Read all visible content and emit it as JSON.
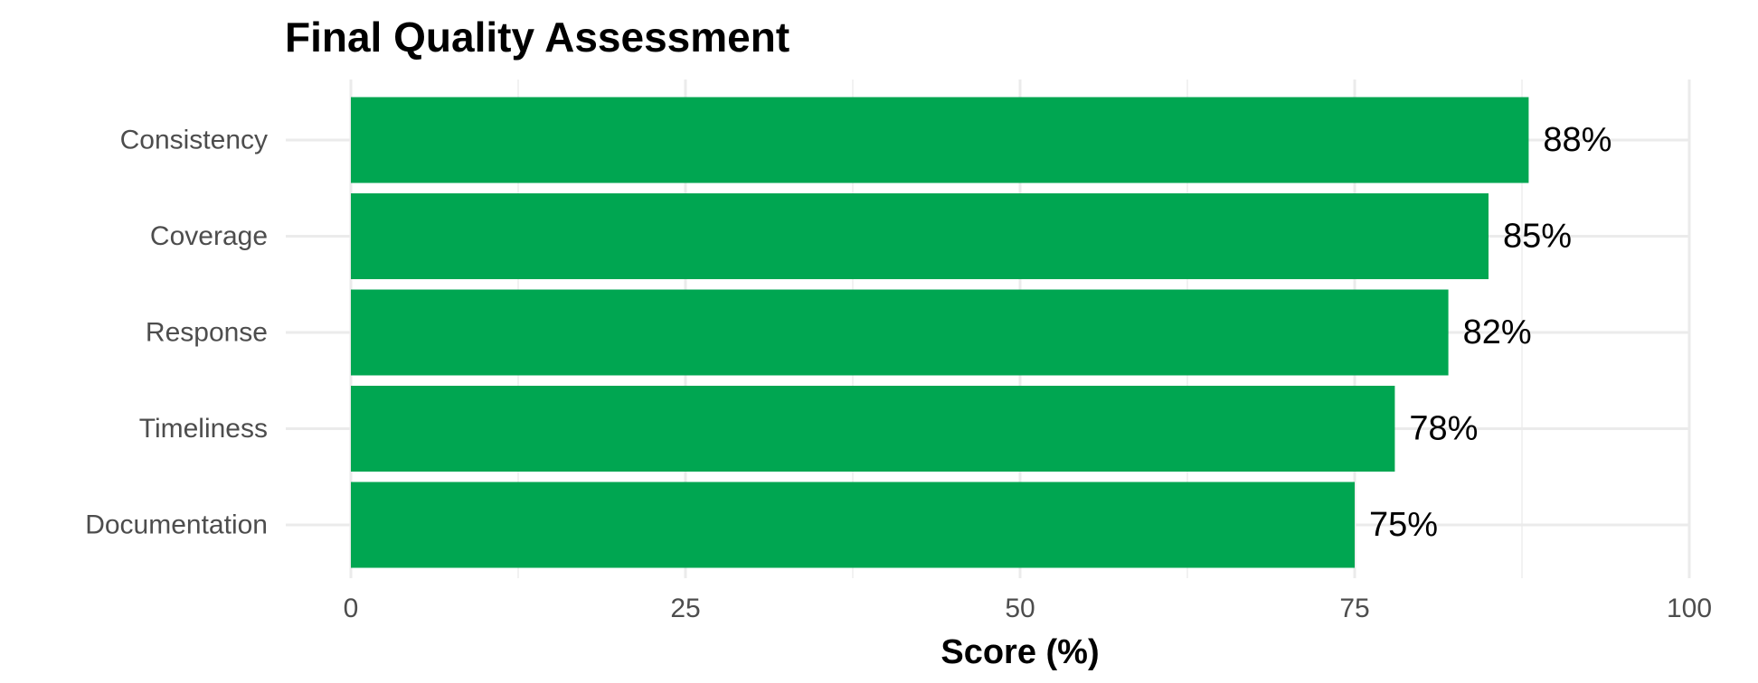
{
  "chart_data": {
    "type": "bar",
    "orientation": "horizontal",
    "title": "Final Quality Assessment",
    "xlabel": "Score (%)",
    "ylabel": "",
    "categories": [
      "Consistency",
      "Coverage",
      "Response",
      "Timeliness",
      "Documentation"
    ],
    "values": [
      88,
      85,
      82,
      78,
      75
    ],
    "value_labels": [
      "88%",
      "85%",
      "82%",
      "78%",
      "75%"
    ],
    "xlim": [
      0,
      100
    ],
    "x_ticks": [
      0,
      25,
      50,
      75,
      100
    ],
    "x_tick_labels": [
      "0",
      "25",
      "50",
      "75",
      "100"
    ],
    "grid": true,
    "legend": "none",
    "colors": {
      "bar": "#00A651",
      "grid_major": "#EBEBEB",
      "grid_minor": "#F2F2F2",
      "tick_text": "#4D4D4D",
      "title_text": "#000000"
    }
  }
}
